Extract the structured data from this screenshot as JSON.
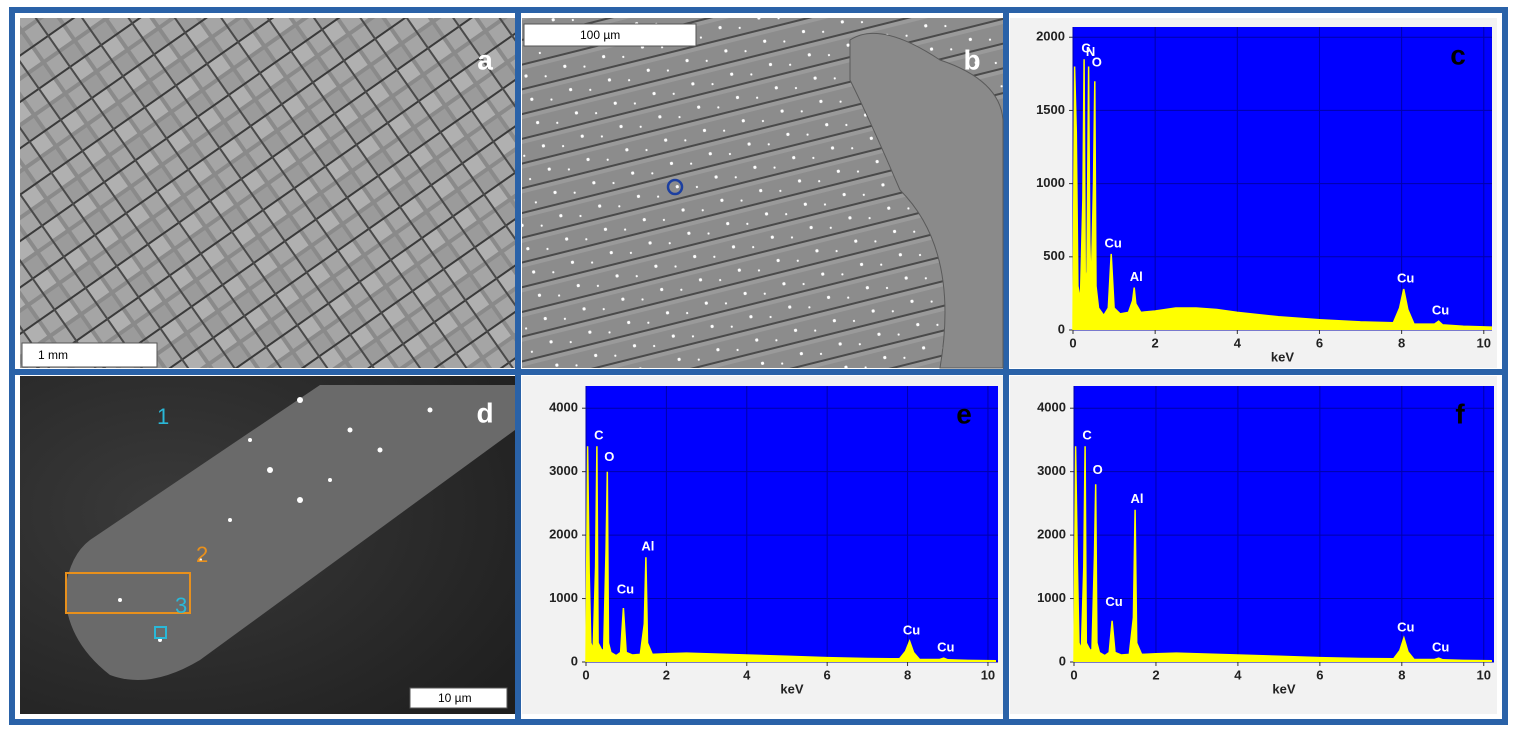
{
  "images": [
    {
      "panel_label": "a",
      "scale_bar": "1 mm"
    },
    {
      "panel_label": "b",
      "scale_bar": "100 µm"
    },
    {
      "panel_label": "d",
      "scale_bar": "10 µm",
      "region_labels": [
        "1",
        "2",
        "3"
      ]
    }
  ],
  "chart_data": [
    {
      "type": "area",
      "panel_label": "c",
      "x_label": "keV",
      "background": "#0000ff",
      "grid": true,
      "xlim": [
        0,
        10.2
      ],
      "xticks": [
        0,
        2,
        4,
        6,
        8,
        10
      ],
      "ylim": [
        0,
        2070
      ],
      "yticks": [
        0,
        500,
        1000,
        1500,
        2000
      ],
      "x": [
        0,
        0.04,
        0.08,
        0.12,
        0.18,
        0.24,
        0.27,
        0.3,
        0.34,
        0.38,
        0.41,
        0.44,
        0.5,
        0.53,
        0.56,
        0.62,
        0.75,
        0.86,
        0.93,
        1.0,
        1.15,
        1.35,
        1.45,
        1.49,
        1.53,
        1.65,
        2.0,
        2.5,
        3.0,
        3.5,
        4.0,
        5.0,
        6.0,
        7.0,
        7.8,
        7.95,
        8.05,
        8.15,
        8.3,
        8.8,
        8.9,
        9.0,
        9.5,
        10.2
      ],
      "series": [
        {
          "color": "#ffff00",
          "values": [
            0,
            1800,
            1350,
            300,
            200,
            900,
            1850,
            300,
            400,
            1800,
            600,
            250,
            1000,
            1700,
            300,
            150,
            100,
            150,
            520,
            150,
            110,
            120,
            200,
            290,
            180,
            120,
            130,
            150,
            150,
            140,
            120,
            90,
            70,
            55,
            50,
            150,
            280,
            140,
            40,
            40,
            60,
            35,
            25,
            20
          ]
        }
      ],
      "peaks": [
        {
          "label": "C",
          "x": 0.27,
          "y": 1850
        },
        {
          "label": "N",
          "x": 0.38,
          "y": 1800
        },
        {
          "label": "O",
          "x": 0.53,
          "y": 1700
        },
        {
          "label": "Cu",
          "x": 0.93,
          "y": 520
        },
        {
          "label": "Al",
          "x": 1.49,
          "y": 290
        },
        {
          "label": "Cu",
          "x": 8.05,
          "y": 280
        },
        {
          "label": "Cu",
          "x": 8.9,
          "y": 60
        }
      ]
    },
    {
      "type": "area",
      "panel_label": "e",
      "x_label": "keV",
      "background": "#0000ff",
      "grid": true,
      "xlim": [
        0,
        10.25
      ],
      "xticks": [
        0,
        2,
        4,
        6,
        8,
        10
      ],
      "ylim": [
        0,
        4350
      ],
      "yticks": [
        0,
        1000,
        2000,
        3000,
        4000
      ],
      "x": [
        0,
        0.04,
        0.08,
        0.12,
        0.18,
        0.24,
        0.27,
        0.3,
        0.34,
        0.38,
        0.41,
        0.44,
        0.5,
        0.53,
        0.56,
        0.62,
        0.75,
        0.86,
        0.93,
        1.0,
        1.15,
        1.35,
        1.45,
        1.49,
        1.53,
        1.65,
        2.0,
        2.5,
        3.0,
        3.5,
        4.0,
        5.0,
        6.0,
        7.0,
        7.8,
        7.95,
        8.05,
        8.15,
        8.3,
        8.8,
        8.9,
        9.0,
        9.5,
        10.2
      ],
      "series": [
        {
          "color": "#ffff00",
          "values": [
            0,
            3400,
            1400,
            300,
            200,
            1500,
            3400,
            300,
            250,
            200,
            180,
            200,
            1800,
            3000,
            300,
            150,
            100,
            150,
            850,
            150,
            110,
            120,
            600,
            1650,
            300,
            120,
            130,
            140,
            130,
            120,
            110,
            90,
            70,
            55,
            50,
            170,
            330,
            150,
            40,
            40,
            60,
            35,
            25,
            20
          ]
        }
      ],
      "peaks": [
        {
          "label": "C",
          "x": 0.27,
          "y": 3400
        },
        {
          "label": "O",
          "x": 0.53,
          "y": 3000
        },
        {
          "label": "Cu",
          "x": 0.93,
          "y": 850
        },
        {
          "label": "Al",
          "x": 1.49,
          "y": 1650
        },
        {
          "label": "Cu",
          "x": 8.05,
          "y": 330
        },
        {
          "label": "Cu",
          "x": 8.9,
          "y": 60
        }
      ]
    },
    {
      "type": "area",
      "panel_label": "f",
      "x_label": "keV",
      "background": "#0000ff",
      "grid": true,
      "xlim": [
        0,
        10.25
      ],
      "xticks": [
        0,
        2,
        4,
        6,
        8,
        10
      ],
      "ylim": [
        0,
        4350
      ],
      "yticks": [
        0,
        1000,
        2000,
        3000,
        4000
      ],
      "x": [
        0,
        0.04,
        0.08,
        0.12,
        0.18,
        0.24,
        0.27,
        0.3,
        0.34,
        0.38,
        0.41,
        0.44,
        0.5,
        0.53,
        0.56,
        0.62,
        0.75,
        0.86,
        0.93,
        1.0,
        1.15,
        1.35,
        1.45,
        1.49,
        1.53,
        1.65,
        2.0,
        2.5,
        3.0,
        3.5,
        4.0,
        5.0,
        6.0,
        7.0,
        7.8,
        7.95,
        8.05,
        8.15,
        8.3,
        8.8,
        8.9,
        9.0,
        9.5,
        10.2
      ],
      "series": [
        {
          "color": "#ffff00",
          "values": [
            0,
            3400,
            1600,
            300,
            200,
            1500,
            3400,
            300,
            250,
            200,
            180,
            200,
            1700,
            2800,
            300,
            150,
            100,
            150,
            650,
            150,
            110,
            120,
            700,
            2400,
            300,
            120,
            130,
            140,
            130,
            120,
            110,
            90,
            70,
            55,
            50,
            180,
            380,
            160,
            40,
            40,
            60,
            35,
            25,
            20
          ]
        }
      ],
      "peaks": [
        {
          "label": "C",
          "x": 0.27,
          "y": 3400
        },
        {
          "label": "O",
          "x": 0.53,
          "y": 2800
        },
        {
          "label": "Cu",
          "x": 0.93,
          "y": 650
        },
        {
          "label": "Al",
          "x": 1.49,
          "y": 2400
        },
        {
          "label": "Cu",
          "x": 8.05,
          "y": 380
        },
        {
          "label": "Cu",
          "x": 8.9,
          "y": 60
        }
      ]
    }
  ]
}
